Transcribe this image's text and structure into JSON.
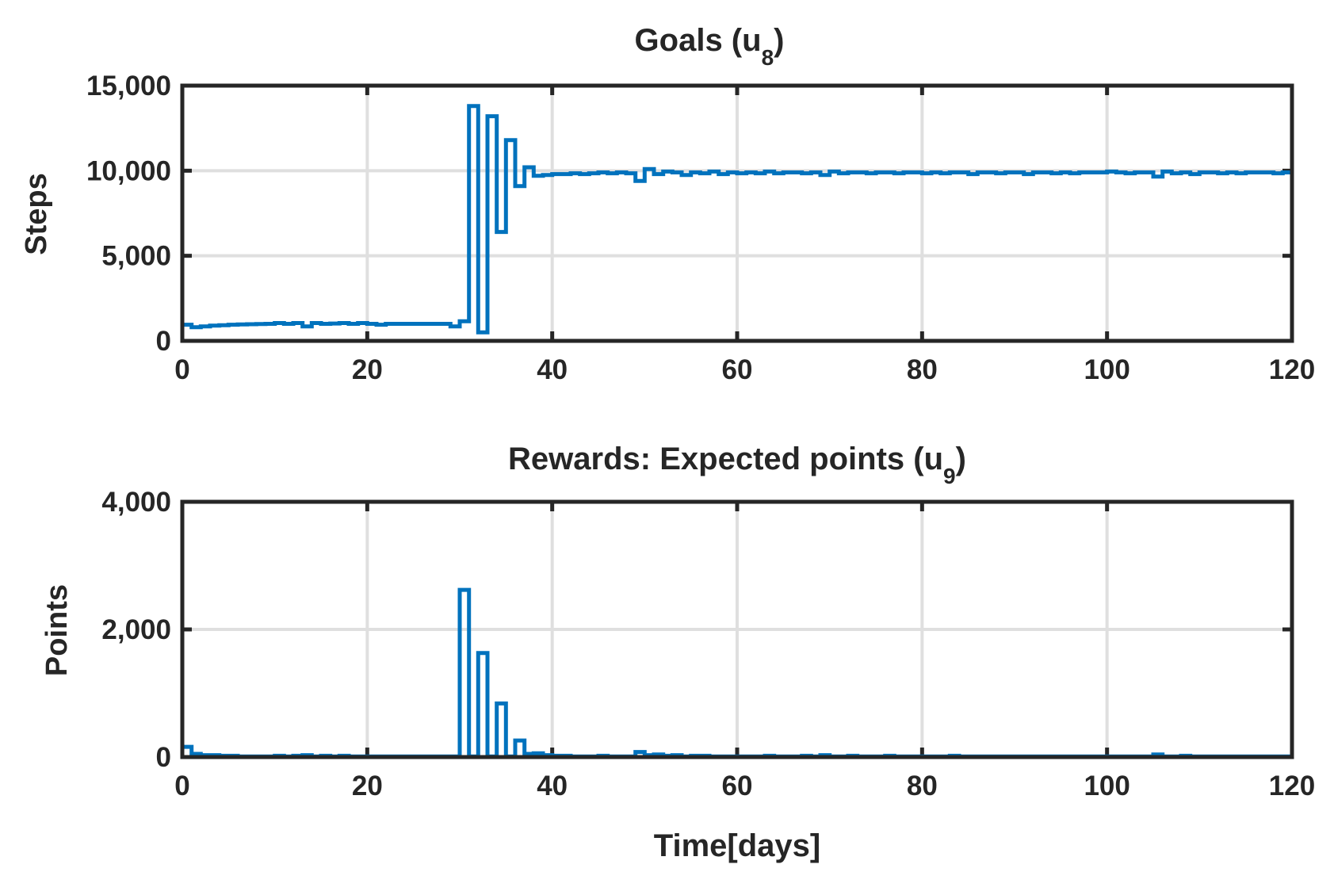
{
  "chart_data": [
    {
      "type": "line",
      "step": true,
      "title_main": "Goals (u",
      "title_sub": "8",
      "title_end": ")",
      "ylabel": "Steps",
      "xlabel": "",
      "xlim": [
        0,
        120
      ],
      "ylim": [
        0,
        15000
      ],
      "xticks": [
        0,
        20,
        40,
        60,
        80,
        100,
        120
      ],
      "xtick_labels": [
        "0",
        "20",
        "40",
        "60",
        "80",
        "100",
        "120"
      ],
      "yticks": [
        0,
        5000,
        10000,
        15000
      ],
      "ytick_labels": [
        "0",
        "5,000",
        "10,000",
        "15,000"
      ],
      "grid": true,
      "color": "#0072bd",
      "x": [
        0,
        1,
        2,
        3,
        4,
        5,
        6,
        7,
        8,
        9,
        10,
        11,
        12,
        13,
        14,
        15,
        16,
        17,
        18,
        19,
        20,
        21,
        22,
        23,
        24,
        25,
        26,
        27,
        28,
        29,
        30,
        31,
        32,
        33,
        34,
        35,
        36,
        37,
        38,
        39,
        40,
        41,
        42,
        43,
        44,
        45,
        46,
        47,
        48,
        49,
        50,
        51,
        52,
        53,
        54,
        55,
        56,
        57,
        58,
        59,
        60,
        61,
        62,
        63,
        64,
        65,
        66,
        67,
        68,
        69,
        70,
        71,
        72,
        73,
        74,
        75,
        76,
        77,
        78,
        79,
        80,
        81,
        82,
        83,
        84,
        85,
        86,
        87,
        88,
        89,
        90,
        91,
        92,
        93,
        94,
        95,
        96,
        97,
        98,
        99,
        100,
        101,
        102,
        103,
        104,
        105,
        106,
        107,
        108,
        109,
        110,
        111,
        112,
        113,
        114,
        115,
        116,
        117,
        118,
        119,
        120
      ],
      "y": [
        950,
        800,
        850,
        900,
        920,
        950,
        970,
        980,
        990,
        1000,
        1050,
        1000,
        1050,
        850,
        1050,
        1000,
        1020,
        1050,
        1000,
        1050,
        1000,
        950,
        1000,
        1000,
        1000,
        1000,
        1000,
        1000,
        1000,
        850,
        1150,
        13800,
        500,
        13200,
        6400,
        11800,
        9100,
        10200,
        9700,
        9750,
        9800,
        9800,
        9850,
        9800,
        9850,
        9900,
        9850,
        9900,
        9850,
        9400,
        10100,
        9800,
        9950,
        9900,
        9750,
        9900,
        9850,
        9950,
        9800,
        9900,
        9850,
        9900,
        9850,
        9950,
        9850,
        9900,
        9900,
        9850,
        9900,
        9750,
        9950,
        9850,
        9900,
        9900,
        9850,
        9900,
        9900,
        9850,
        9900,
        9900,
        9850,
        9900,
        9850,
        9900,
        9900,
        9800,
        9900,
        9900,
        9850,
        9900,
        9900,
        9800,
        9900,
        9900,
        9850,
        9900,
        9850,
        9900,
        9900,
        9900,
        9950,
        9900,
        9850,
        9900,
        9900,
        9650,
        9950,
        9850,
        9900,
        9800,
        9900,
        9900,
        9850,
        9900,
        9850,
        9900,
        9900,
        9900,
        9850,
        9900,
        9900
      ]
    },
    {
      "type": "line",
      "step": true,
      "title_main": "Rewards: Expected points (u",
      "title_sub": "9",
      "title_end": ")",
      "ylabel": "Points",
      "xlabel": "Time[days]",
      "xlim": [
        0,
        120
      ],
      "ylim": [
        0,
        4000
      ],
      "xticks": [
        0,
        20,
        40,
        60,
        80,
        100,
        120
      ],
      "xtick_labels": [
        "0",
        "20",
        "40",
        "60",
        "80",
        "100",
        "120"
      ],
      "yticks": [
        0,
        2000,
        4000
      ],
      "ytick_labels": [
        "0",
        "2,000",
        "4,000"
      ],
      "grid": true,
      "color": "#0072bd",
      "x": [
        0,
        1,
        2,
        3,
        4,
        5,
        6,
        7,
        8,
        9,
        10,
        11,
        12,
        13,
        14,
        15,
        16,
        17,
        18,
        19,
        20,
        21,
        22,
        23,
        24,
        25,
        26,
        27,
        28,
        29,
        30,
        31,
        32,
        33,
        34,
        35,
        36,
        37,
        38,
        39,
        40,
        41,
        42,
        43,
        44,
        45,
        46,
        47,
        48,
        49,
        50,
        51,
        52,
        53,
        54,
        55,
        56,
        57,
        58,
        59,
        60,
        61,
        62,
        63,
        64,
        65,
        66,
        67,
        68,
        69,
        70,
        71,
        72,
        73,
        74,
        75,
        76,
        77,
        78,
        79,
        80,
        81,
        82,
        83,
        84,
        85,
        86,
        87,
        88,
        89,
        90,
        91,
        92,
        93,
        94,
        95,
        96,
        97,
        98,
        99,
        100,
        101,
        102,
        103,
        104,
        105,
        106,
        107,
        108,
        109,
        110,
        111,
        112,
        113,
        114,
        115,
        116,
        117,
        118,
        119,
        120
      ],
      "y": [
        160,
        50,
        30,
        30,
        20,
        20,
        10,
        10,
        10,
        10,
        20,
        10,
        20,
        30,
        10,
        20,
        10,
        20,
        10,
        10,
        10,
        10,
        10,
        10,
        10,
        10,
        10,
        10,
        10,
        10,
        2620,
        10,
        1630,
        10,
        840,
        10,
        260,
        50,
        60,
        30,
        20,
        20,
        10,
        10,
        10,
        20,
        10,
        10,
        10,
        80,
        30,
        40,
        20,
        30,
        10,
        20,
        20,
        10,
        10,
        10,
        10,
        10,
        10,
        20,
        10,
        10,
        10,
        20,
        10,
        30,
        10,
        10,
        20,
        10,
        10,
        10,
        20,
        10,
        10,
        10,
        10,
        10,
        10,
        20,
        10,
        10,
        10,
        10,
        10,
        10,
        10,
        10,
        10,
        10,
        10,
        10,
        10,
        10,
        10,
        10,
        10,
        10,
        10,
        10,
        10,
        40,
        10,
        10,
        20,
        10,
        10,
        10,
        10,
        10,
        10,
        10,
        10,
        10,
        10,
        10,
        10
      ]
    }
  ]
}
